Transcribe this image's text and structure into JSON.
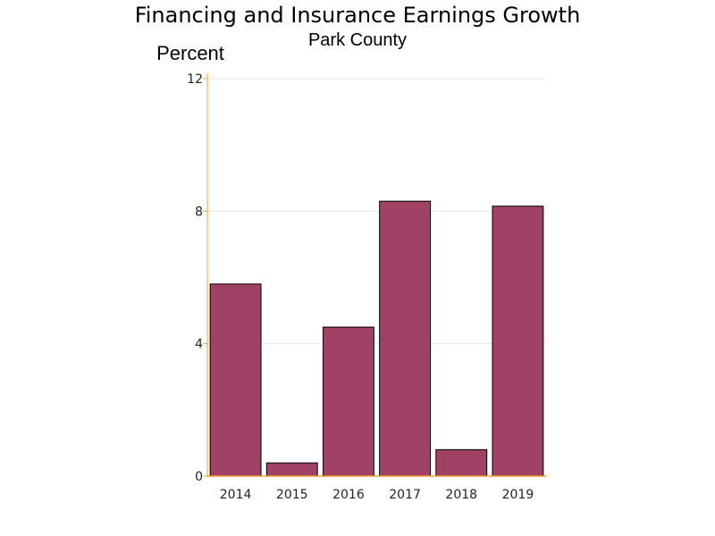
{
  "chart_data": {
    "type": "bar",
    "title": "Financing and Insurance Earnings Growth",
    "subtitle": "Park County",
    "xlabel": "",
    "ylabel": "Percent",
    "categories": [
      "2014",
      "2015",
      "2016",
      "2017",
      "2018",
      "2019"
    ],
    "values": [
      5.8,
      0.4,
      4.5,
      8.3,
      0.8,
      8.15
    ],
    "ylim": [
      0,
      12
    ],
    "yticks": [
      "0",
      "4",
      "8",
      "12"
    ],
    "grid": true,
    "legend": "none",
    "colors": {
      "bar_fill": "#a04266",
      "bar_stroke": "#000000",
      "axis": "#f0a030",
      "grid": "#e6e6e6"
    }
  }
}
